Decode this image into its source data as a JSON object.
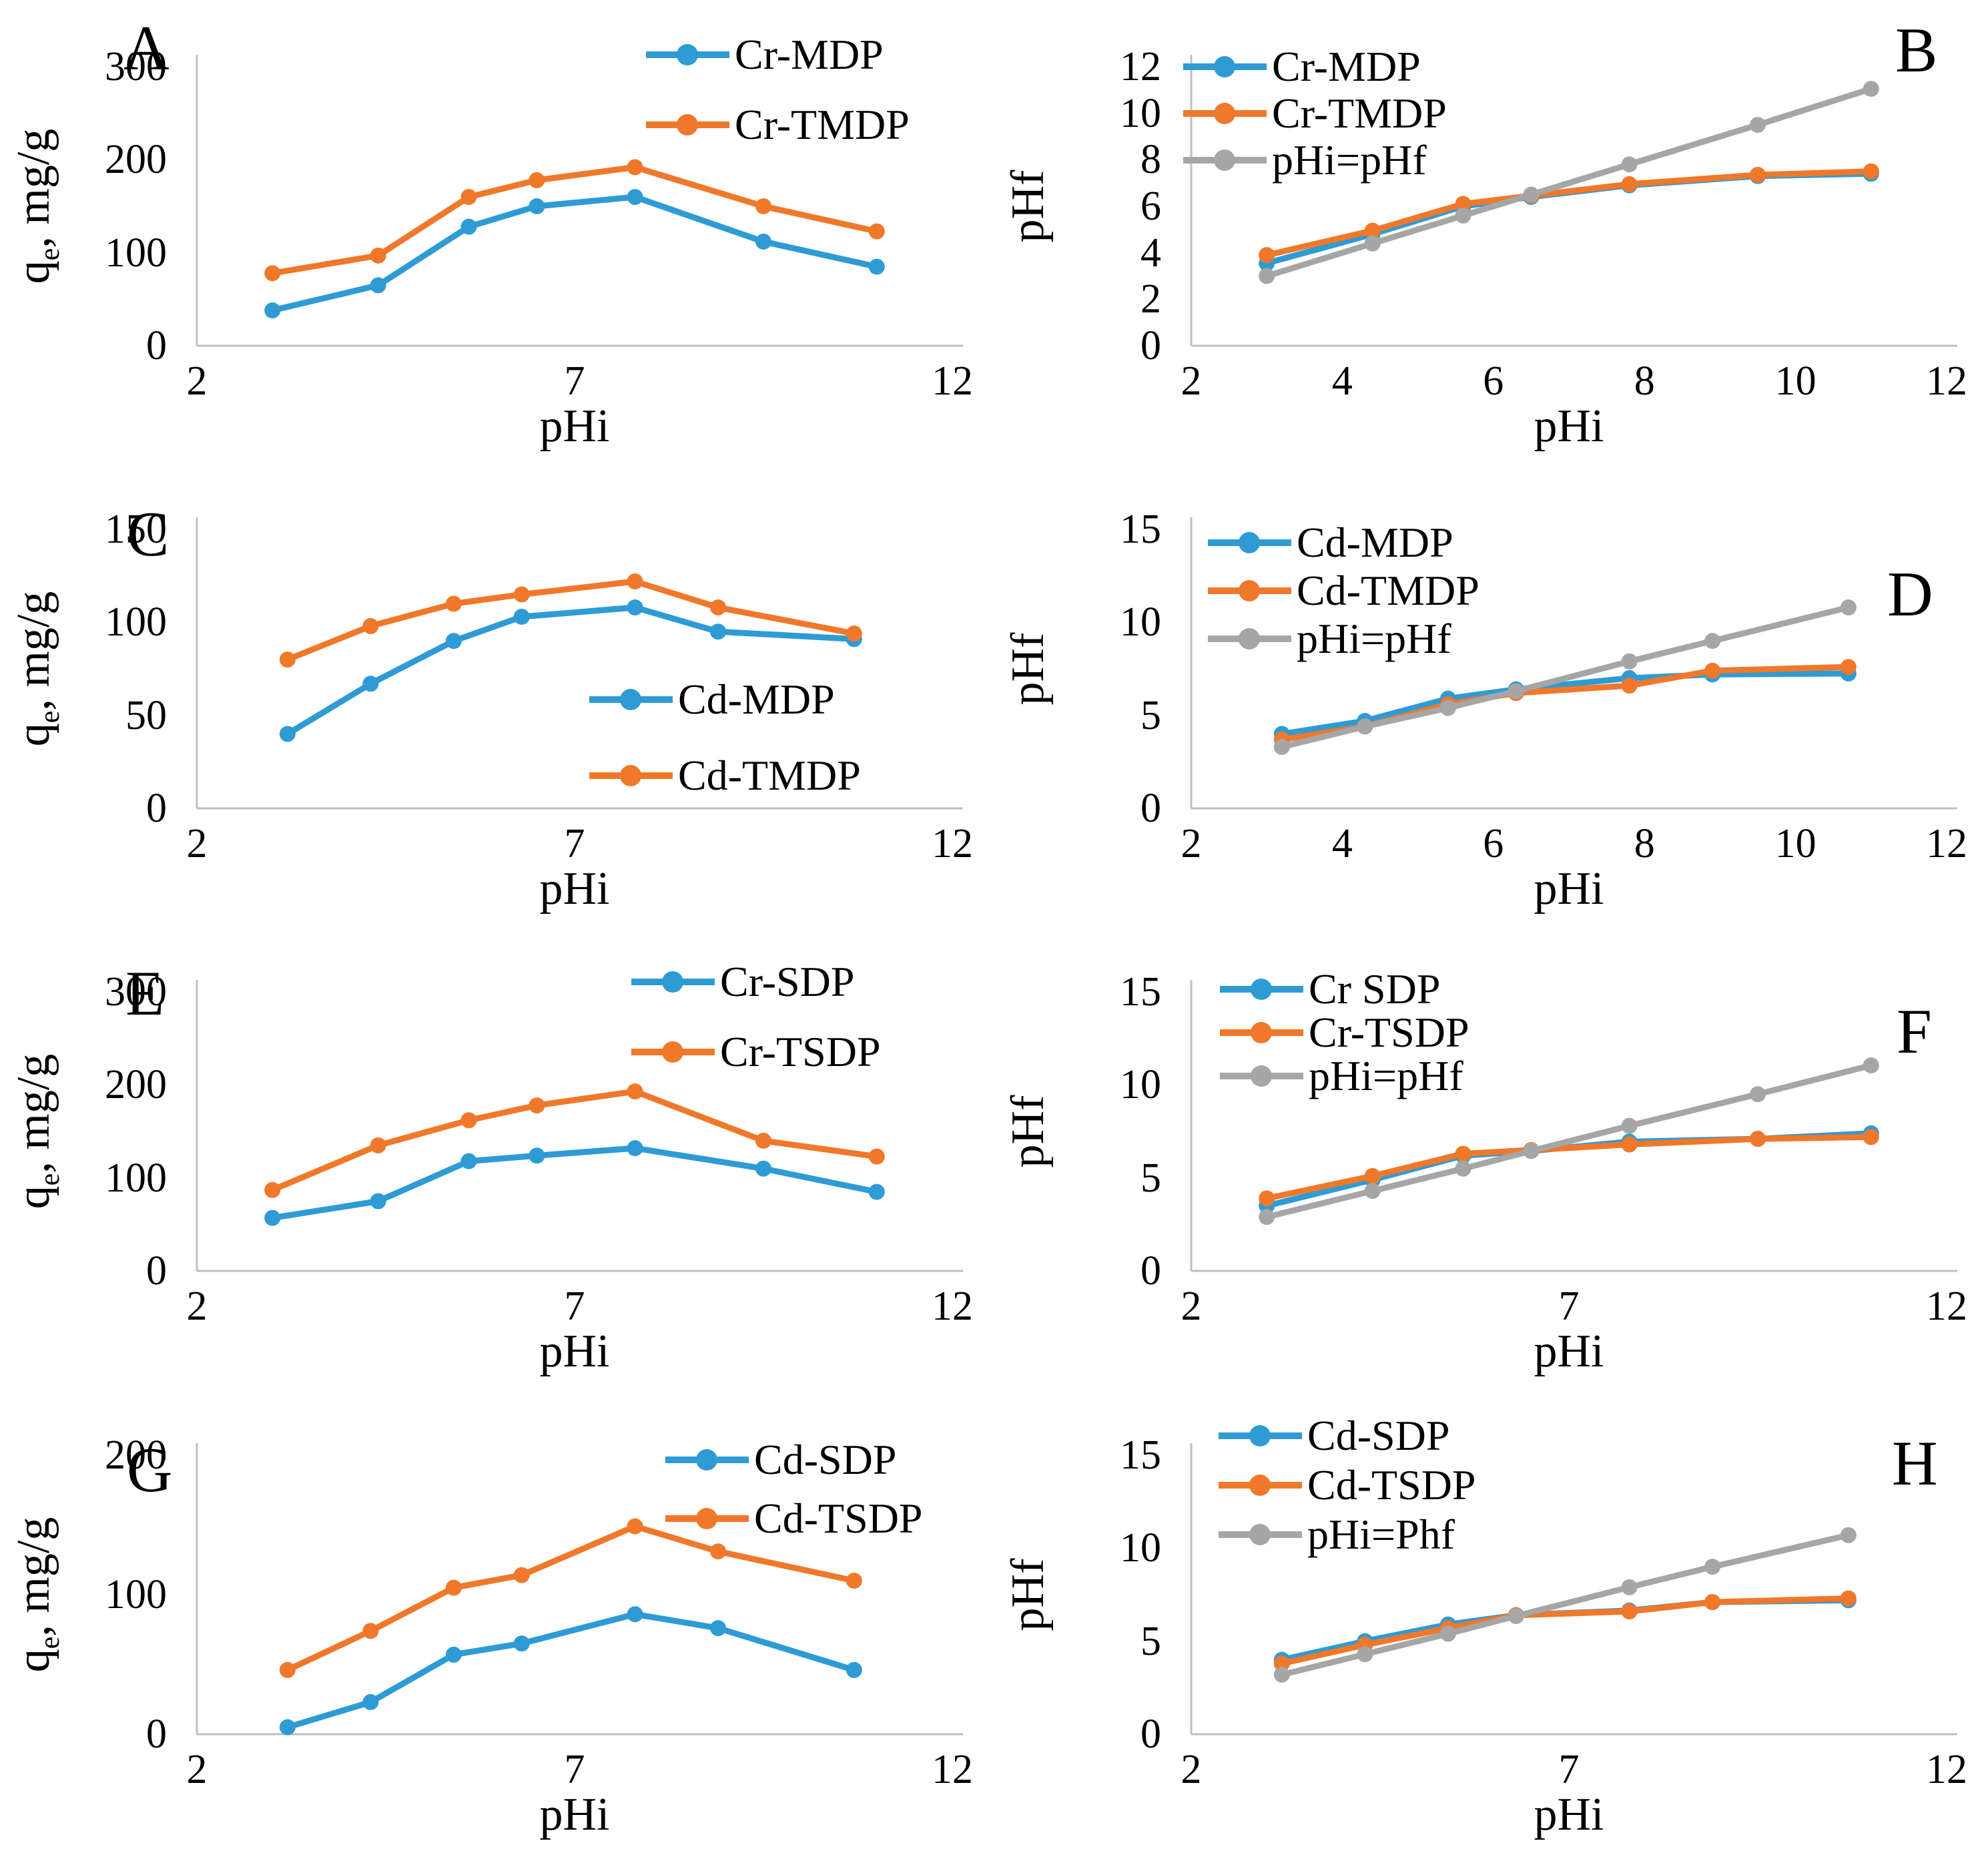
{
  "page": {
    "background": "#FFFFFF"
  },
  "colors": {
    "blue": "#2E9BD5",
    "orange": "#F0782A",
    "gray": "#A6A6A6",
    "axis_line": "#BFBFBF",
    "text": "#000000"
  },
  "chart_data": [
    {
      "id": "A",
      "letter": "A",
      "type": "line",
      "xlabel": "pHi",
      "ylabel": "qe, mg/g",
      "ylabel_parts": {
        "pre": "q",
        "sub": "e",
        "post": ", mg/g"
      },
      "xlim": [
        2,
        12
      ],
      "xticks": [
        2,
        7,
        12
      ],
      "ylim": [
        0,
        300
      ],
      "yticks": [
        0,
        100,
        200,
        300
      ],
      "grid": false,
      "x": [
        3,
        4.4,
        5.6,
        6.5,
        7.8,
        9.5,
        11
      ],
      "series": [
        {
          "name": "Cr-MDP",
          "color": "blue",
          "values": [
            38,
            65,
            128,
            150,
            160,
            112,
            85
          ]
        },
        {
          "name": "Cr-TMDP",
          "color": "orange",
          "values": [
            78,
            97,
            160,
            178,
            192,
            150,
            123
          ]
        }
      ],
      "legend": {
        "position": "top-right-inside",
        "left": 968,
        "item_centers": [
          82,
          187
        ]
      }
    },
    {
      "id": "B",
      "letter": "B",
      "type": "line",
      "xlabel": "pHi",
      "ylabel": "pHf",
      "ylabel_parts": {
        "pre": "pHf",
        "sub": "",
        "post": ""
      },
      "xlim": [
        2,
        12
      ],
      "xticks": [
        2,
        4,
        6,
        8,
        10,
        12
      ],
      "ylim": [
        0,
        12
      ],
      "yticks": [
        0,
        2,
        4,
        6,
        8,
        10,
        12
      ],
      "grid": false,
      "x": [
        3,
        4.4,
        5.6,
        6.5,
        7.8,
        9.5,
        11
      ],
      "series": [
        {
          "name": "Cr-MDP",
          "color": "blue",
          "values": [
            3.55,
            4.8,
            6.0,
            6.4,
            6.9,
            7.3,
            7.4
          ]
        },
        {
          "name": "Cr-TMDP",
          "color": "orange",
          "values": [
            3.9,
            4.95,
            6.1,
            6.45,
            6.95,
            7.35,
            7.5
          ]
        },
        {
          "name": "pHi=pHf",
          "color": "gray",
          "values": [
            3.0,
            4.4,
            5.6,
            6.5,
            7.8,
            9.5,
            11.05
          ]
        }
      ],
      "legend": {
        "position": "top-left-inside",
        "left": 283,
        "item_centers": [
          100,
          170,
          240
        ]
      }
    },
    {
      "id": "C",
      "letter": "C",
      "type": "line",
      "xlabel": "pHi",
      "ylabel": "qe, mg/g",
      "ylabel_parts": {
        "pre": "q",
        "sub": "e",
        "post": ", mg/g"
      },
      "xlim": [
        2,
        12
      ],
      "xticks": [
        2,
        7,
        12
      ],
      "ylim": [
        0,
        150
      ],
      "yticks": [
        0,
        50,
        100,
        150
      ],
      "grid": false,
      "x": [
        3.2,
        4.3,
        5.4,
        6.3,
        7.8,
        8.9,
        10.7
      ],
      "series": [
        {
          "name": "Cd-MDP",
          "color": "blue",
          "values": [
            40,
            67,
            90,
            103,
            108,
            95,
            91
          ]
        },
        {
          "name": "Cd-TMDP",
          "color": "orange",
          "values": [
            80,
            98,
            110,
            115,
            122,
            108,
            94
          ]
        }
      ],
      "legend": {
        "position": "mid-right-inside",
        "left": 883,
        "item_centers": [
          355,
          469
        ]
      }
    },
    {
      "id": "D",
      "letter": "D",
      "type": "line",
      "xlabel": "pHi",
      "ylabel": "pHf",
      "ylabel_parts": {
        "pre": "pHf",
        "sub": "",
        "post": ""
      },
      "xlim": [
        2,
        12
      ],
      "xticks": [
        2,
        4,
        6,
        8,
        10,
        12
      ],
      "ylim": [
        0,
        15
      ],
      "yticks": [
        0,
        5,
        10,
        15
      ],
      "grid": false,
      "x": [
        3.2,
        4.3,
        5.4,
        6.3,
        7.8,
        8.9,
        10.7
      ],
      "series": [
        {
          "name": "Cd-MDP",
          "color": "blue",
          "values": [
            4.0,
            4.7,
            5.9,
            6.4,
            7.0,
            7.2,
            7.25
          ]
        },
        {
          "name": "Cd-TMDP",
          "color": "orange",
          "values": [
            3.7,
            4.4,
            5.6,
            6.2,
            6.6,
            7.4,
            7.6
          ]
        },
        {
          "name": "pHi=pHf",
          "color": "gray",
          "values": [
            3.3,
            4.4,
            5.4,
            6.3,
            7.9,
            9.0,
            10.8
          ]
        }
      ],
      "legend": {
        "position": "top-left-inside",
        "left": 320,
        "item_centers": [
          120,
          192,
          264
        ]
      }
    },
    {
      "id": "E",
      "letter": "E",
      "type": "line",
      "xlabel": "pHi",
      "ylabel": "qe, mg/g",
      "ylabel_parts": {
        "pre": "q",
        "sub": "e",
        "post": ", mg/g"
      },
      "xlim": [
        2,
        12
      ],
      "xticks": [
        2,
        7,
        12
      ],
      "ylim": [
        0,
        300
      ],
      "yticks": [
        0,
        100,
        200,
        300
      ],
      "grid": false,
      "x": [
        3,
        4.4,
        5.6,
        6.5,
        7.8,
        9.5,
        11
      ],
      "series": [
        {
          "name": "Cr-SDP",
          "color": "blue",
          "values": [
            57,
            75,
            118,
            124,
            132,
            110,
            85
          ]
        },
        {
          "name": "Cr-TSDP",
          "color": "orange",
          "values": [
            87,
            135,
            162,
            178,
            193,
            140,
            123
          ]
        }
      ],
      "legend": {
        "position": "top-right-inside",
        "left": 946,
        "item_centers": [
          85,
          190
        ]
      }
    },
    {
      "id": "F",
      "letter": "F",
      "type": "line",
      "xlabel": "pHi",
      "ylabel": "pHf",
      "ylabel_parts": {
        "pre": "pHf",
        "sub": "",
        "post": ""
      },
      "xlim": [
        2,
        12
      ],
      "xticks": [
        2,
        7,
        12
      ],
      "ylim": [
        0,
        15
      ],
      "yticks": [
        0,
        5,
        10,
        15
      ],
      "grid": false,
      "x": [
        3,
        4.4,
        5.6,
        6.5,
        7.8,
        9.5,
        11
      ],
      "series": [
        {
          "name": "Cr SDP",
          "color": "blue",
          "values": [
            3.5,
            4.9,
            6.2,
            6.45,
            6.95,
            7.1,
            7.4
          ]
        },
        {
          "name": "Cr-TSDP",
          "color": "orange",
          "values": [
            3.9,
            5.1,
            6.3,
            6.5,
            6.8,
            7.1,
            7.2
          ]
        },
        {
          "name": "pHi=pHf",
          "color": "gray",
          "values": [
            2.9,
            4.3,
            5.5,
            6.45,
            7.8,
            9.5,
            11.05
          ]
        }
      ],
      "legend": {
        "position": "top-left-inside",
        "left": 338,
        "item_centers": [
          96,
          161,
          226
        ]
      }
    },
    {
      "id": "G",
      "letter": "G",
      "type": "line",
      "xlabel": "pHi",
      "ylabel": "qe, mg/g",
      "ylabel_parts": {
        "pre": "q",
        "sub": "e",
        "post": ", mg/g"
      },
      "xlim": [
        2,
        12
      ],
      "xticks": [
        2,
        7,
        12
      ],
      "ylim": [
        0,
        200
      ],
      "yticks": [
        0,
        100,
        200
      ],
      "grid": false,
      "x": [
        3.2,
        4.3,
        5.4,
        6.3,
        7.8,
        8.9,
        10.7
      ],
      "series": [
        {
          "name": "Cd-SDP",
          "color": "blue",
          "values": [
            5,
            23,
            57,
            65,
            86,
            76,
            46
          ]
        },
        {
          "name": "Cd-TSDP",
          "color": "orange",
          "values": [
            46,
            74,
            105,
            114,
            149,
            131,
            110
          ]
        }
      ],
      "legend": {
        "position": "top-right-inside",
        "left": 997,
        "item_centers": [
          107,
          195
        ]
      }
    },
    {
      "id": "H",
      "letter": "H",
      "type": "line",
      "xlabel": "pHi",
      "ylabel": "pHf",
      "ylabel_parts": {
        "pre": "pHf",
        "sub": "",
        "post": ""
      },
      "xlim": [
        2,
        12
      ],
      "xticks": [
        2,
        7,
        12
      ],
      "ylim": [
        0,
        15
      ],
      "yticks": [
        0,
        5,
        10,
        15
      ],
      "grid": false,
      "x": [
        3.2,
        4.3,
        5.4,
        6.3,
        7.8,
        8.9,
        10.7
      ],
      "series": [
        {
          "name": "Cd-SDP",
          "color": "blue",
          "values": [
            4.0,
            5.0,
            5.9,
            6.4,
            6.65,
            7.1,
            7.2
          ]
        },
        {
          "name": "Cd-TSDP",
          "color": "orange",
          "values": [
            3.8,
            4.8,
            5.7,
            6.4,
            6.6,
            7.1,
            7.3
          ]
        },
        {
          "name": "pHi=Phf",
          "color": "gray",
          "values": [
            3.2,
            4.3,
            5.4,
            6.35,
            7.9,
            9.0,
            10.7
          ]
        }
      ],
      "legend": {
        "position": "top-left-inside",
        "left": 336,
        "item_centers": [
          71,
          145,
          219
        ]
      }
    }
  ]
}
